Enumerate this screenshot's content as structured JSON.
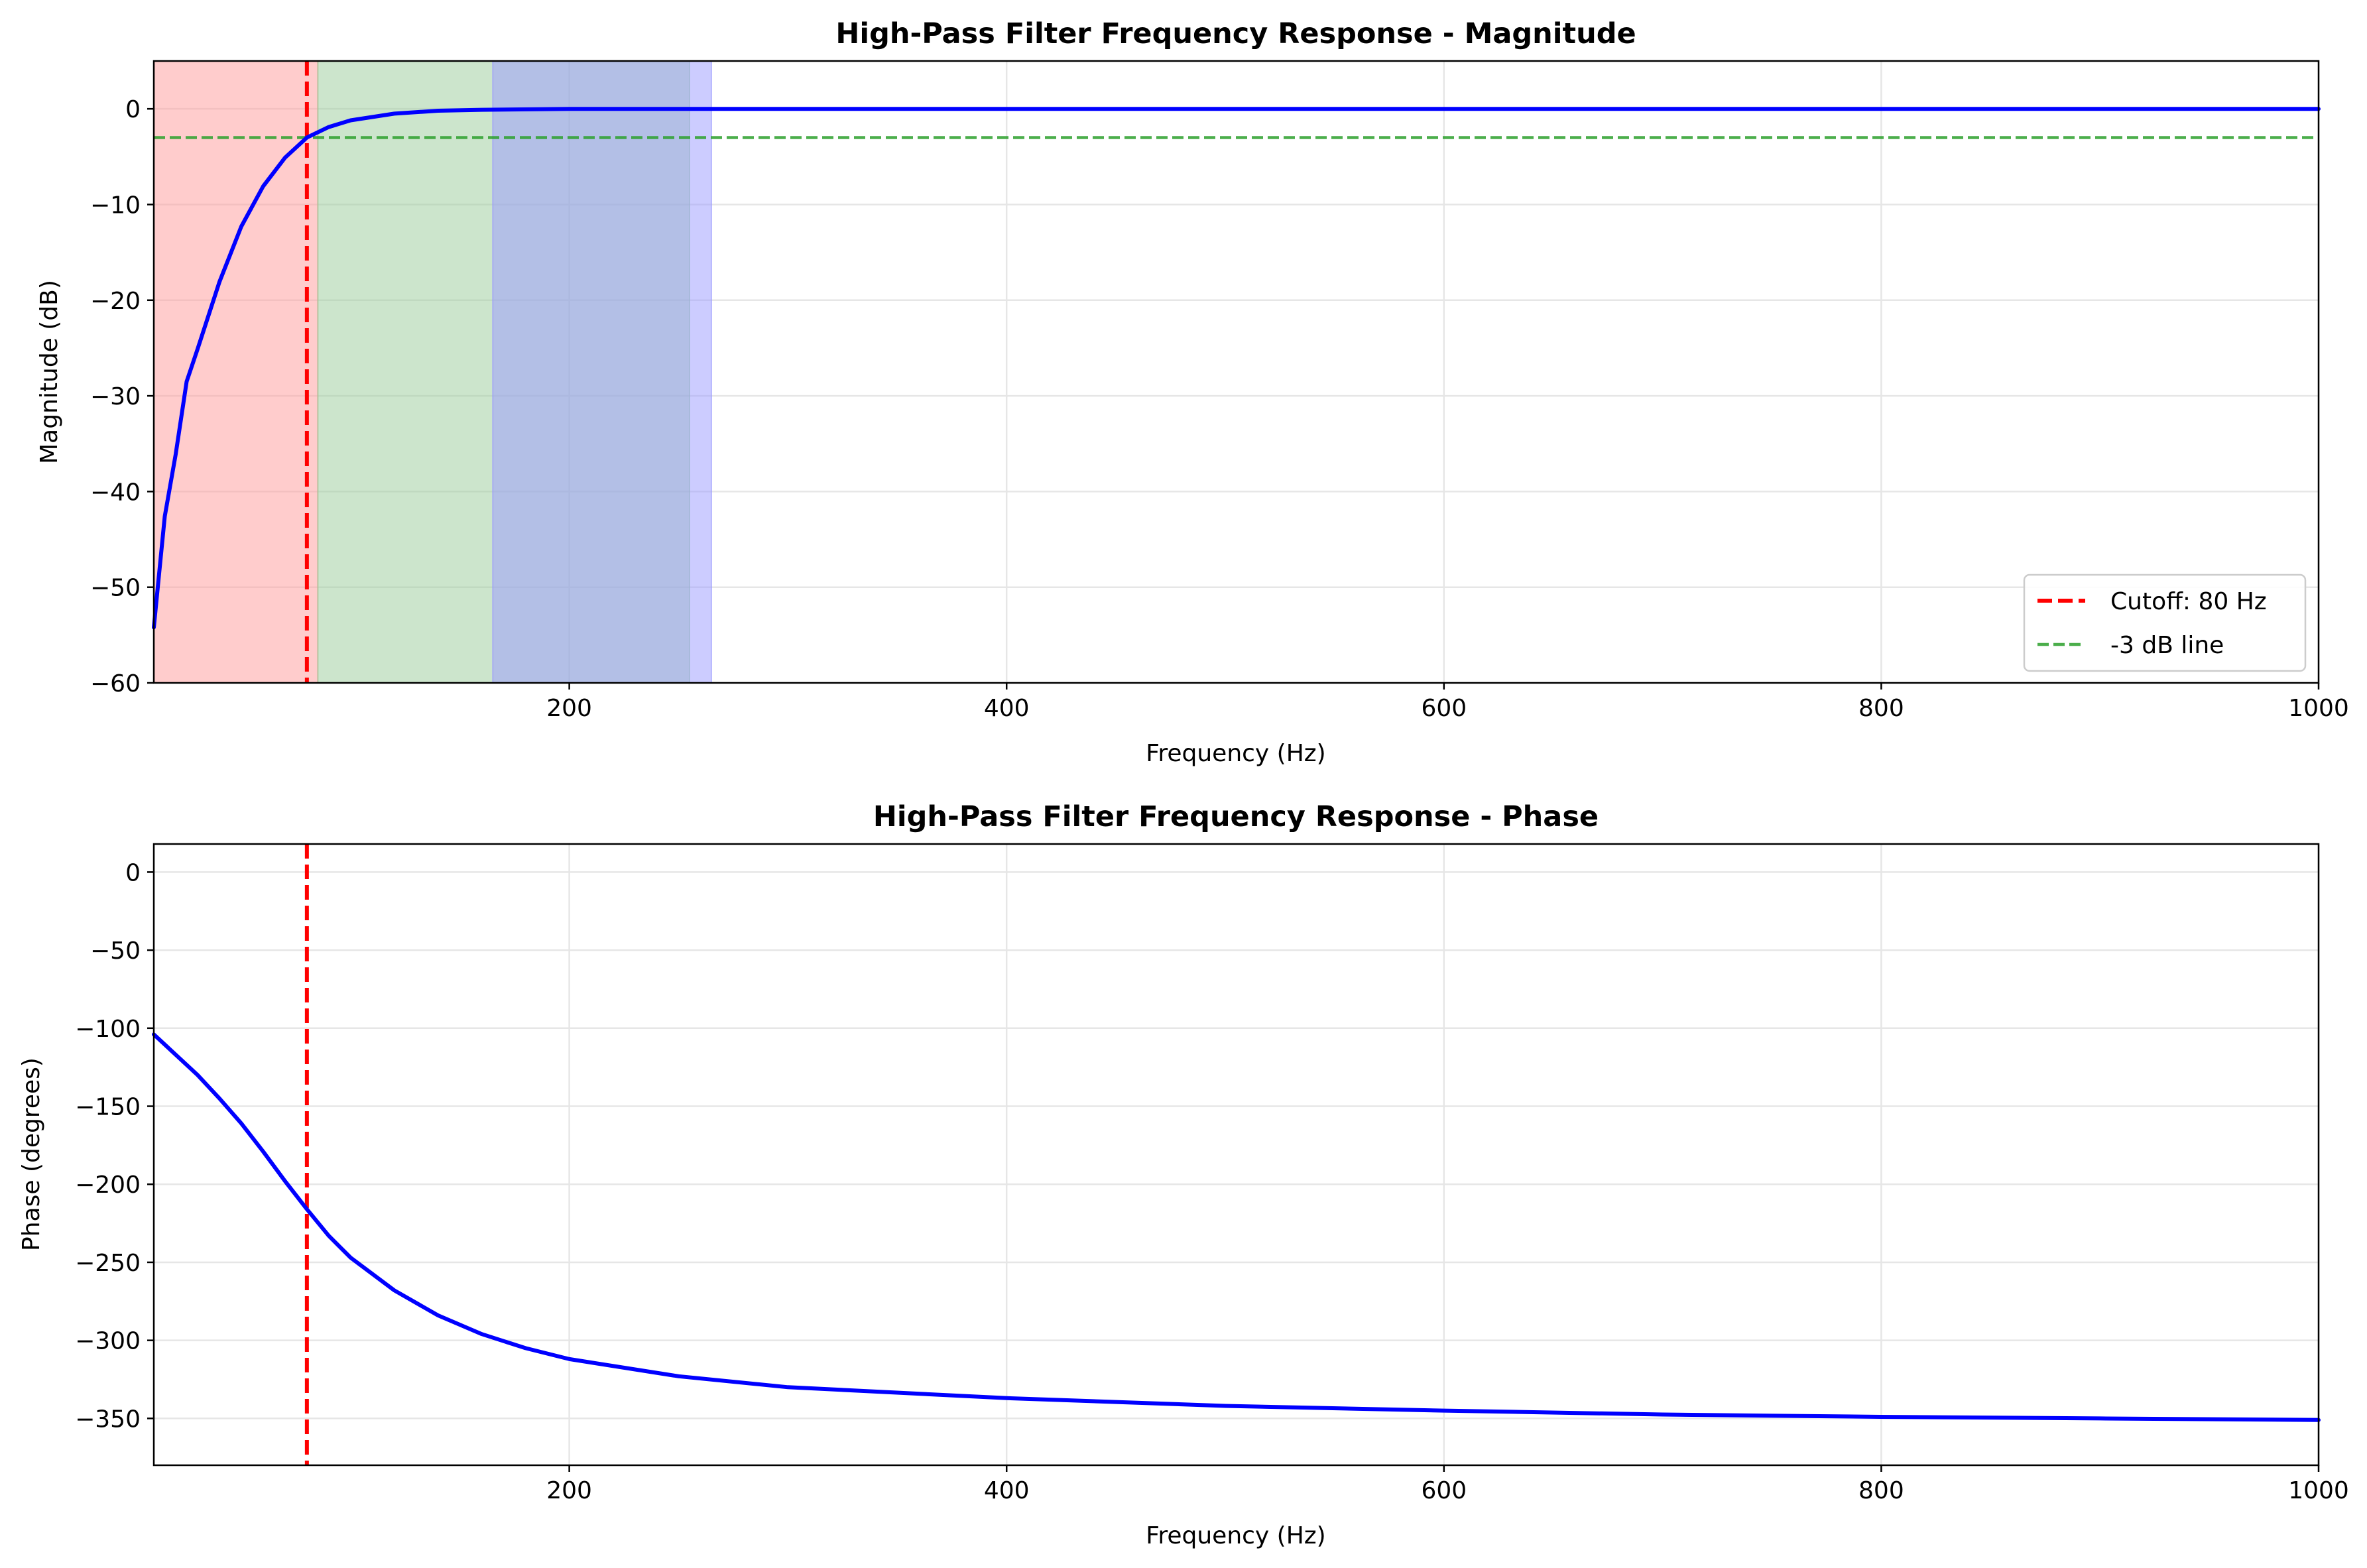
{
  "colors": {
    "response": "#0000ff",
    "cutoff": "#ff0000",
    "threshold": "#2ca02c",
    "band_low": "#ff9999",
    "band_mid": "#99cc99",
    "band_high": "#9999ff",
    "grid": "#e6e6e6"
  },
  "chart_data": [
    {
      "type": "line",
      "title": "High-Pass Filter Frequency Response - Magnitude",
      "xlabel": "Frequency (Hz)",
      "ylabel": "Magnitude (dB)",
      "xlim": [
        10,
        1000
      ],
      "ylim": [
        -60,
        5
      ],
      "xticks": [
        200,
        400,
        600,
        800,
        1000
      ],
      "yticks": [
        0,
        -10,
        -20,
        -30,
        -40,
        -50,
        -60
      ],
      "grid": true,
      "legend_position": "lower-right",
      "legend": [
        "Cutoff: 80 Hz",
        "-3 dB line"
      ],
      "shaded_bands": [
        {
          "from": 10,
          "to": 85,
          "color": "red"
        },
        {
          "from": 85,
          "to": 255,
          "color": "green"
        },
        {
          "from": 165,
          "to": 265,
          "color": "blue"
        }
      ],
      "series": [
        {
          "style": "solid blue",
          "x": [
            10,
            15,
            20,
            25,
            30,
            40,
            50,
            60,
            70,
            80,
            90,
            100,
            120,
            140,
            160,
            200,
            300,
            500,
            1000
          ],
          "y": [
            -54.2,
            -42.6,
            -36.1,
            -28.5,
            -25.1,
            -18.1,
            -12.3,
            -8.1,
            -5.1,
            -3.0,
            -1.9,
            -1.2,
            -0.5,
            -0.2,
            -0.1,
            0.0,
            0.0,
            0.0,
            0.0
          ]
        },
        {
          "name": "Cutoff: 80 Hz",
          "style": "dashed red vertical",
          "x": 80
        },
        {
          "name": "-3 dB line",
          "style": "dashed green horizontal",
          "y": -3
        }
      ]
    },
    {
      "type": "line",
      "title": "High-Pass Filter Frequency Response - Phase",
      "xlabel": "Frequency (Hz)",
      "ylabel": "Phase (degrees)",
      "xlim": [
        10,
        1000
      ],
      "ylim": [
        -380,
        18
      ],
      "xticks": [
        200,
        400,
        600,
        800,
        1000
      ],
      "yticks": [
        0,
        -50,
        -100,
        -150,
        -200,
        -250,
        -300,
        -350
      ],
      "grid": true,
      "series": [
        {
          "style": "solid blue",
          "x": [
            10,
            20,
            30,
            40,
            50,
            60,
            70,
            80,
            90,
            100,
            120,
            140,
            160,
            180,
            200,
            250,
            300,
            400,
            500,
            600,
            700,
            800,
            900,
            1000
          ],
          "y": [
            -104,
            -117,
            -130,
            -145,
            -161,
            -179,
            -198,
            -216,
            -233,
            -247,
            -268,
            -284,
            -296,
            -305,
            -312,
            -323,
            -330,
            -337,
            -342,
            -345,
            -347.5,
            -349,
            -350,
            -351
          ]
        },
        {
          "name": "Cutoff: 80 Hz",
          "style": "dashed red vertical",
          "x": 80
        }
      ]
    }
  ]
}
